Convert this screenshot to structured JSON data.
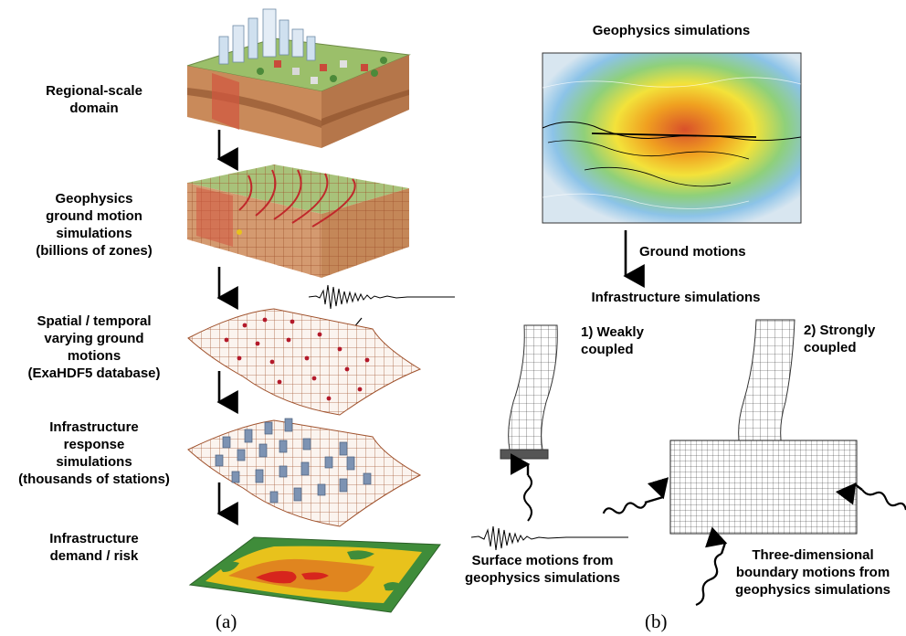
{
  "panel_a": {
    "caption": "(a)",
    "steps": [
      {
        "label": "Regional-scale\ndomain"
      },
      {
        "label": "Geophysics\nground motion\nsimulations\n(billions of zones)"
      },
      {
        "label": "Spatial / temporal\nvarying ground\nmotions\n(ExaHDF5 database)"
      },
      {
        "label": "Infrastructure\nresponse\nsimulations\n(thousands of stations)"
      },
      {
        "label": "Infrastructure\ndemand / risk"
      }
    ]
  },
  "panel_b": {
    "caption": "(b)",
    "geophysics_title": "Geophysics simulations",
    "arrow_label": "Ground motions",
    "infrastructure_title": "Infrastructure simulations",
    "weak_label": "1) Weakly\ncoupled",
    "strong_label": "2) Strongly\ncoupled",
    "surface_label": "Surface motions from\ngeophysics simulations",
    "boundary_label": "Three-dimensional\nboundary motions from\ngeophysics simulations"
  },
  "colors": {
    "soil_top": "#9bbf6a",
    "soil_side": "#b5764a",
    "mesh_line": "#a0522d",
    "fault_red": "#c0282b",
    "heat_green": "#3f8c3a",
    "heat_yellow": "#e8c21c",
    "heat_orange": "#e0851f",
    "map_blue": "#7fb2dd"
  }
}
